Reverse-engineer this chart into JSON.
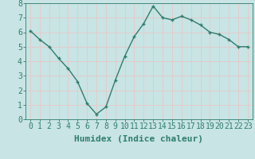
{
  "x": [
    0,
    1,
    2,
    3,
    4,
    5,
    6,
    7,
    8,
    9,
    10,
    11,
    12,
    13,
    14,
    15,
    16,
    17,
    18,
    19,
    20,
    21,
    22,
    23
  ],
  "y": [
    6.1,
    5.5,
    5.0,
    4.2,
    3.5,
    2.6,
    1.1,
    0.35,
    0.85,
    2.7,
    4.35,
    5.7,
    6.6,
    7.8,
    7.0,
    6.85,
    7.1,
    6.85,
    6.5,
    6.0,
    5.85,
    5.5,
    5.0,
    5.0
  ],
  "xlabel": "Humidex (Indice chaleur)",
  "ylabel": "",
  "xlim": [
    -0.5,
    23.5
  ],
  "ylim": [
    0,
    8
  ],
  "bg_color": "#c8e4e4",
  "grid_color": "#e8c8c8",
  "line_color": "#2e7d6e",
  "marker_color": "#2e7d6e",
  "tick_color": "#2e7d6e",
  "label_color": "#2e7d6e",
  "xlabel_fontsize": 8,
  "tick_fontsize": 7,
  "linewidth": 1.0,
  "markersize": 3.5
}
